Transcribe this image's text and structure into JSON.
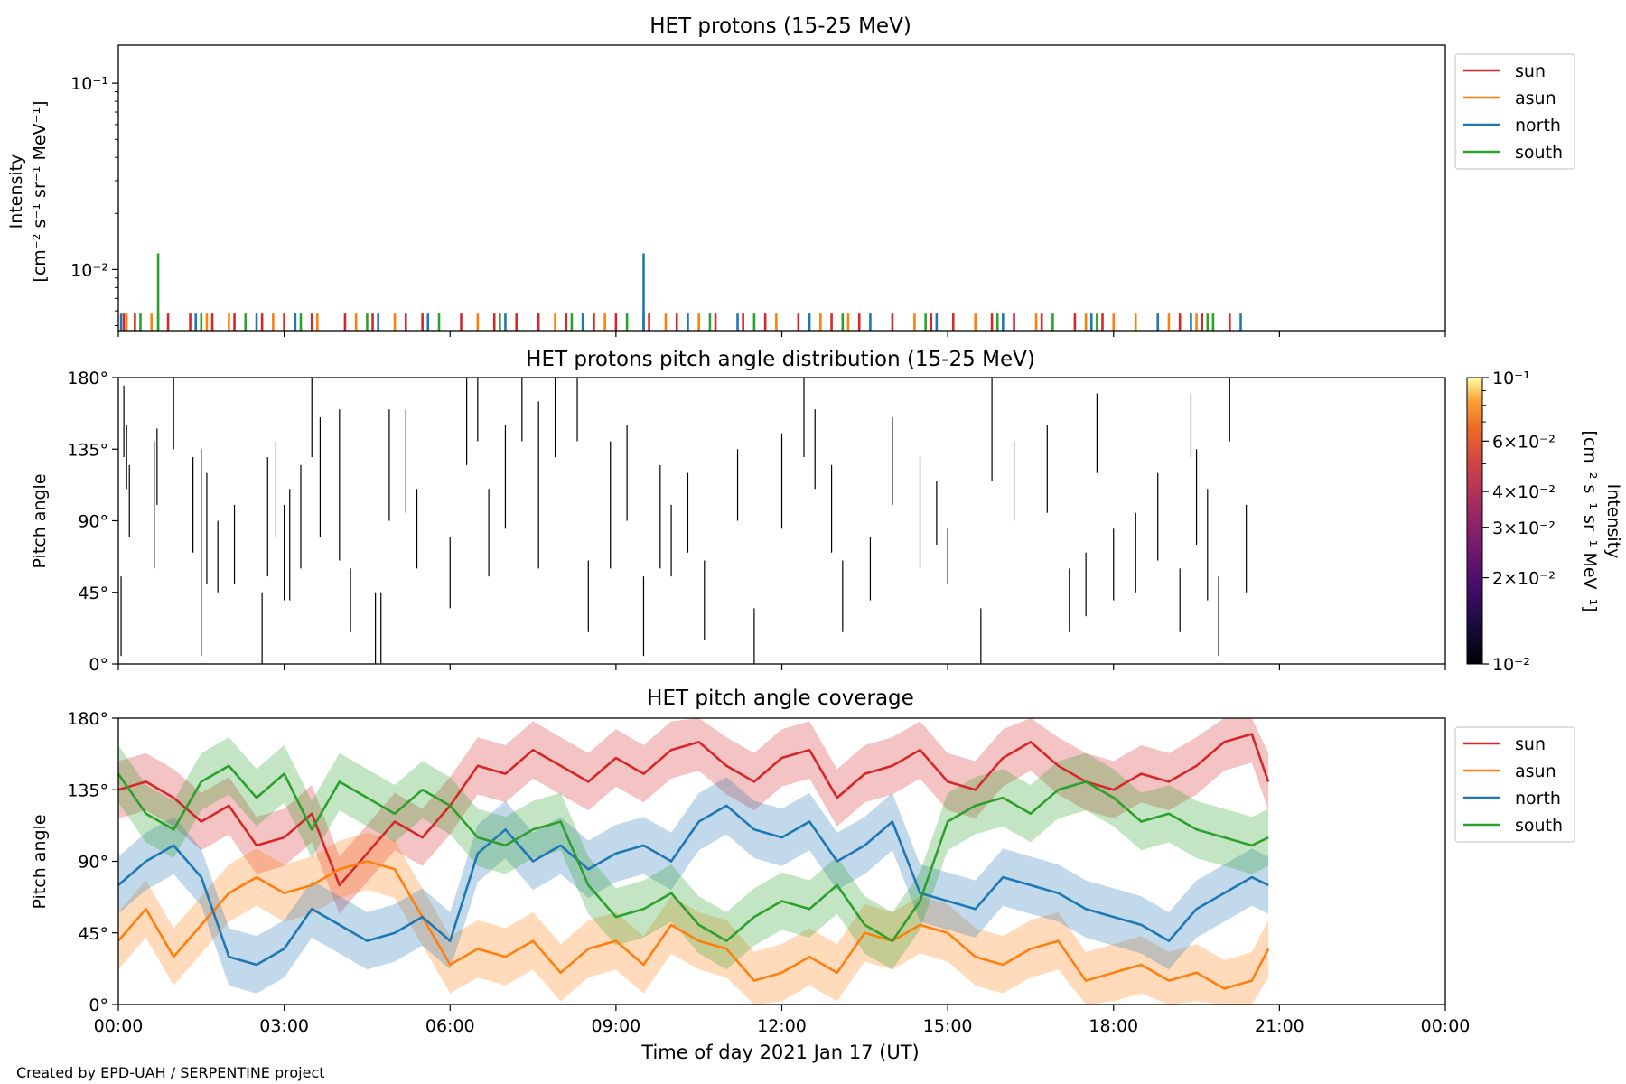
{
  "footer": {
    "credit": "Created by EPD-UAH / SERPENTINE project"
  },
  "colors": {
    "sun": "#d62728",
    "asun": "#ff7f0e",
    "north": "#1f77b4",
    "south": "#2ca02c"
  },
  "chart_data": [
    {
      "type": "bar",
      "title": "HET protons (15-25 MeV)",
      "ylabel": [
        "Intensity",
        "[cm⁻² s⁻¹ sr⁻¹ MeV⁻¹]"
      ],
      "yscale": "log",
      "ylim": [
        0.0047,
        0.16
      ],
      "yticks": [
        {
          "value": 0.1,
          "label": "10⁻¹"
        },
        {
          "value": 0.01,
          "label": "10⁻²"
        }
      ],
      "xlim_hours": [
        0,
        24
      ],
      "legend": {
        "placement": "outside-right",
        "entries": [
          "sun",
          "asun",
          "north",
          "south"
        ]
      },
      "baseline_value": 0.0058,
      "series": [
        {
          "name": "sun",
          "color": "#d62728",
          "peaks": [],
          "spikes_hours": [
            0.1,
            0.3,
            0.9,
            1.3,
            1.7,
            2.1,
            2.6,
            3.0,
            3.5,
            4.1,
            4.6,
            5.2,
            5.5,
            6.2,
            6.8,
            7.2,
            7.6,
            8.1,
            8.6,
            9.0,
            9.6,
            10.1,
            10.8,
            11.3,
            11.7,
            12.3,
            12.9,
            13.4,
            14.0,
            14.7,
            15.1,
            15.8,
            16.2,
            16.7,
            17.3,
            17.8,
            19.2,
            19.6,
            20.1
          ]
        },
        {
          "name": "asun",
          "color": "#ff7f0e",
          "peaks": [],
          "spikes_hours": [
            0.15,
            0.6,
            1.6,
            2.0,
            2.8,
            3.6,
            4.3,
            5.0,
            6.5,
            7.9,
            8.8,
            9.9,
            10.5,
            11.9,
            12.7,
            13.2,
            14.4,
            15.5,
            16.6,
            17.5,
            18.0,
            18.4,
            19.0,
            19.5
          ]
        },
        {
          "name": "north",
          "color": "#1f77b4",
          "peaks": [
            {
              "hour": 9.5,
              "value": 0.0122
            }
          ],
          "spikes_hours": [
            0.05,
            1.4,
            2.5,
            3.2,
            4.7,
            5.6,
            7.0,
            8.4,
            9.5,
            10.3,
            11.2,
            12.5,
            13.6,
            14.8,
            16.0,
            17.6,
            18.8,
            19.4,
            20.3
          ]
        },
        {
          "name": "south",
          "color": "#2ca02c",
          "peaks": [
            {
              "hour": 0.72,
              "value": 0.0122
            }
          ],
          "spikes_hours": [
            0.4,
            0.72,
            1.5,
            2.3,
            3.3,
            4.5,
            5.8,
            6.9,
            8.2,
            9.2,
            10.7,
            11.5,
            13.1,
            14.6,
            15.9,
            16.9,
            17.7,
            19.7,
            19.8
          ]
        }
      ]
    },
    {
      "type": "heatmap",
      "title": "HET protons pitch angle distribution (15-25 MeV)",
      "ylabel": "Pitch angle",
      "ylim": [
        0,
        180
      ],
      "yticks": [
        {
          "value": 0,
          "label": "0°"
        },
        {
          "value": 45,
          "label": "45°"
        },
        {
          "value": 90,
          "label": "90°"
        },
        {
          "value": 135,
          "label": "135°"
        },
        {
          "value": 180,
          "label": "180°"
        }
      ],
      "xlim_hours": [
        0,
        24
      ],
      "colorbar": {
        "label": [
          "Intensity",
          "[cm⁻² s⁻¹ sr⁻¹ MeV⁻¹]"
        ],
        "scale": "log",
        "range": [
          0.01,
          0.1
        ],
        "colormap": "inferno",
        "ticks": [
          {
            "value": 0.1,
            "label": "10⁻¹"
          },
          {
            "value": 0.06,
            "label": "6×10⁻²"
          },
          {
            "value": 0.04,
            "label": "4×10⁻²"
          },
          {
            "value": 0.03,
            "label": "3×10⁻²"
          },
          {
            "value": 0.02,
            "label": "2×10⁻²"
          },
          {
            "value": 0.01,
            "label": "10⁻²"
          }
        ]
      },
      "segments": [
        {
          "t": 0.05,
          "y0": 5,
          "y1": 55
        },
        {
          "t": 0.1,
          "y0": 130,
          "y1": 175
        },
        {
          "t": 0.15,
          "y0": 110,
          "y1": 150
        },
        {
          "t": 0.2,
          "y0": 80,
          "y1": 125
        },
        {
          "t": 0.65,
          "y0": 60,
          "y1": 140
        },
        {
          "t": 0.7,
          "y0": 100,
          "y1": 148
        },
        {
          "t": 1.0,
          "y0": 135,
          "y1": 180
        },
        {
          "t": 1.35,
          "y0": 70,
          "y1": 130
        },
        {
          "t": 1.5,
          "y0": 5,
          "y1": 135
        },
        {
          "t": 1.6,
          "y0": 50,
          "y1": 120
        },
        {
          "t": 1.8,
          "y0": 45,
          "y1": 90
        },
        {
          "t": 2.1,
          "y0": 50,
          "y1": 100
        },
        {
          "t": 2.6,
          "y0": 0,
          "y1": 45
        },
        {
          "t": 2.7,
          "y0": 55,
          "y1": 130
        },
        {
          "t": 2.85,
          "y0": 80,
          "y1": 140
        },
        {
          "t": 3.0,
          "y0": 40,
          "y1": 100
        },
        {
          "t": 3.1,
          "y0": 40,
          "y1": 110
        },
        {
          "t": 3.3,
          "y0": 60,
          "y1": 125
        },
        {
          "t": 3.5,
          "y0": 130,
          "y1": 180
        },
        {
          "t": 3.65,
          "y0": 80,
          "y1": 155
        },
        {
          "t": 4.0,
          "y0": 65,
          "y1": 160
        },
        {
          "t": 4.2,
          "y0": 20,
          "y1": 60
        },
        {
          "t": 4.65,
          "y0": 0,
          "y1": 45
        },
        {
          "t": 4.75,
          "y0": 0,
          "y1": 45
        },
        {
          "t": 4.9,
          "y0": 90,
          "y1": 160
        },
        {
          "t": 5.2,
          "y0": 95,
          "y1": 160
        },
        {
          "t": 5.4,
          "y0": 60,
          "y1": 110
        },
        {
          "t": 6.0,
          "y0": 35,
          "y1": 80
        },
        {
          "t": 6.3,
          "y0": 125,
          "y1": 180
        },
        {
          "t": 6.5,
          "y0": 140,
          "y1": 180
        },
        {
          "t": 6.7,
          "y0": 55,
          "y1": 110
        },
        {
          "t": 7.0,
          "y0": 85,
          "y1": 150
        },
        {
          "t": 7.3,
          "y0": 140,
          "y1": 180
        },
        {
          "t": 7.6,
          "y0": 60,
          "y1": 165
        },
        {
          "t": 7.9,
          "y0": 130,
          "y1": 180
        },
        {
          "t": 8.3,
          "y0": 140,
          "y1": 180
        },
        {
          "t": 8.5,
          "y0": 20,
          "y1": 65
        },
        {
          "t": 8.9,
          "y0": 60,
          "y1": 140
        },
        {
          "t": 9.2,
          "y0": 90,
          "y1": 150
        },
        {
          "t": 9.5,
          "y0": 5,
          "y1": 55
        },
        {
          "t": 9.8,
          "y0": 60,
          "y1": 125
        },
        {
          "t": 10.0,
          "y0": 55,
          "y1": 100
        },
        {
          "t": 10.3,
          "y0": 70,
          "y1": 120
        },
        {
          "t": 10.6,
          "y0": 15,
          "y1": 65
        },
        {
          "t": 11.2,
          "y0": 90,
          "y1": 135
        },
        {
          "t": 11.5,
          "y0": 0,
          "y1": 35
        },
        {
          "t": 12.0,
          "y0": 85,
          "y1": 145
        },
        {
          "t": 12.4,
          "y0": 130,
          "y1": 180
        },
        {
          "t": 12.6,
          "y0": 110,
          "y1": 160
        },
        {
          "t": 12.9,
          "y0": 70,
          "y1": 125
        },
        {
          "t": 13.1,
          "y0": 20,
          "y1": 65
        },
        {
          "t": 13.6,
          "y0": 40,
          "y1": 80
        },
        {
          "t": 14.0,
          "y0": 100,
          "y1": 155
        },
        {
          "t": 14.5,
          "y0": 60,
          "y1": 130
        },
        {
          "t": 14.8,
          "y0": 75,
          "y1": 115
        },
        {
          "t": 15.0,
          "y0": 50,
          "y1": 85
        },
        {
          "t": 15.6,
          "y0": 0,
          "y1": 35
        },
        {
          "t": 15.8,
          "y0": 115,
          "y1": 180
        },
        {
          "t": 16.2,
          "y0": 90,
          "y1": 140
        },
        {
          "t": 16.8,
          "y0": 95,
          "y1": 150
        },
        {
          "t": 17.2,
          "y0": 20,
          "y1": 60
        },
        {
          "t": 17.5,
          "y0": 30,
          "y1": 70
        },
        {
          "t": 17.7,
          "y0": 120,
          "y1": 170
        },
        {
          "t": 18.0,
          "y0": 40,
          "y1": 85
        },
        {
          "t": 18.4,
          "y0": 45,
          "y1": 95
        },
        {
          "t": 18.8,
          "y0": 65,
          "y1": 120
        },
        {
          "t": 19.2,
          "y0": 20,
          "y1": 60
        },
        {
          "t": 19.4,
          "y0": 130,
          "y1": 170
        },
        {
          "t": 19.5,
          "y0": 75,
          "y1": 135
        },
        {
          "t": 19.7,
          "y0": 40,
          "y1": 110
        },
        {
          "t": 19.9,
          "y0": 5,
          "y1": 55
        },
        {
          "t": 20.1,
          "y0": 140,
          "y1": 180
        },
        {
          "t": 20.4,
          "y0": 45,
          "y1": 100
        }
      ]
    },
    {
      "type": "line",
      "title": "HET pitch angle coverage",
      "ylabel": "Pitch angle",
      "xlabel": "Time of day 2021 Jan 17 (UT)",
      "ylim": [
        0,
        180
      ],
      "yticks": [
        {
          "value": 0,
          "label": "0°"
        },
        {
          "value": 45,
          "label": "45°"
        },
        {
          "value": 90,
          "label": "90°"
        },
        {
          "value": 135,
          "label": "135°"
        },
        {
          "value": 180,
          "label": "180°"
        }
      ],
      "xlim_hours": [
        0,
        24
      ],
      "xticks": [
        {
          "hour": 0,
          "label": "00:00"
        },
        {
          "hour": 3,
          "label": "03:00"
        },
        {
          "hour": 6,
          "label": "06:00"
        },
        {
          "hour": 9,
          "label": "09:00"
        },
        {
          "hour": 12,
          "label": "12:00"
        },
        {
          "hour": 15,
          "label": "15:00"
        },
        {
          "hour": 18,
          "label": "18:00"
        },
        {
          "hour": 21,
          "label": "21:00"
        },
        {
          "hour": 24,
          "label": "00:00"
        }
      ],
      "legend": {
        "placement": "outside-right",
        "entries": [
          "sun",
          "asun",
          "north",
          "south"
        ]
      },
      "band_halfwidth_deg": 18,
      "data_end_hour": 20.8,
      "series": [
        {
          "name": "sun",
          "color": "#d62728",
          "x": [
            0,
            0.5,
            1,
            1.5,
            2,
            2.5,
            3,
            3.5,
            4,
            4.5,
            5,
            5.5,
            6,
            6.5,
            7,
            7.5,
            8,
            8.5,
            9,
            9.5,
            10,
            10.5,
            11,
            11.5,
            12,
            12.5,
            13,
            13.5,
            14,
            14.5,
            15,
            15.5,
            16,
            16.5,
            17,
            17.5,
            18,
            18.5,
            19,
            19.5,
            20,
            20.5,
            20.8
          ],
          "y": [
            135,
            140,
            130,
            115,
            125,
            100,
            105,
            120,
            75,
            95,
            115,
            105,
            125,
            150,
            145,
            160,
            150,
            140,
            155,
            145,
            160,
            165,
            150,
            140,
            155,
            160,
            130,
            145,
            150,
            160,
            140,
            135,
            155,
            165,
            150,
            140,
            135,
            145,
            140,
            150,
            165,
            170,
            140
          ]
        },
        {
          "name": "asun",
          "color": "#ff7f0e",
          "x": [
            0,
            0.5,
            1,
            1.5,
            2,
            2.5,
            3,
            3.5,
            4,
            4.5,
            5,
            5.5,
            6,
            6.5,
            7,
            7.5,
            8,
            8.5,
            9,
            9.5,
            10,
            10.5,
            11,
            11.5,
            12,
            12.5,
            13,
            13.5,
            14,
            14.5,
            15,
            15.5,
            16,
            16.5,
            17,
            17.5,
            18,
            18.5,
            19,
            19.5,
            20,
            20.5,
            20.8
          ],
          "y": [
            40,
            60,
            30,
            50,
            70,
            80,
            70,
            75,
            85,
            90,
            85,
            55,
            25,
            35,
            30,
            40,
            20,
            35,
            40,
            25,
            50,
            40,
            35,
            15,
            20,
            30,
            20,
            45,
            40,
            50,
            45,
            30,
            25,
            35,
            40,
            15,
            20,
            25,
            15,
            20,
            10,
            15,
            35
          ]
        },
        {
          "name": "north",
          "color": "#1f77b4",
          "x": [
            0,
            0.5,
            1,
            1.5,
            2,
            2.5,
            3,
            3.5,
            4,
            4.5,
            5,
            5.5,
            6,
            6.5,
            7,
            7.5,
            8,
            8.5,
            9,
            9.5,
            10,
            10.5,
            11,
            11.5,
            12,
            12.5,
            13,
            13.5,
            14,
            14.5,
            15,
            15.5,
            16,
            16.5,
            17,
            17.5,
            18,
            18.5,
            19,
            19.5,
            20,
            20.5,
            20.8
          ],
          "y": [
            75,
            90,
            100,
            80,
            30,
            25,
            35,
            60,
            50,
            40,
            45,
            55,
            40,
            95,
            110,
            90,
            100,
            85,
            95,
            100,
            90,
            115,
            125,
            110,
            105,
            115,
            90,
            100,
            115,
            70,
            65,
            60,
            80,
            75,
            70,
            60,
            55,
            50,
            40,
            60,
            70,
            80,
            75
          ]
        },
        {
          "name": "south",
          "color": "#2ca02c",
          "x": [
            0,
            0.5,
            1,
            1.5,
            2,
            2.5,
            3,
            3.5,
            4,
            4.5,
            5,
            5.5,
            6,
            6.5,
            7,
            7.5,
            8,
            8.5,
            9,
            9.5,
            10,
            10.5,
            11,
            11.5,
            12,
            12.5,
            13,
            13.5,
            14,
            14.5,
            15,
            15.5,
            16,
            16.5,
            17,
            17.5,
            18,
            18.5,
            19,
            19.5,
            20,
            20.5,
            20.8
          ],
          "y": [
            145,
            120,
            110,
            140,
            150,
            130,
            145,
            110,
            140,
            130,
            120,
            135,
            125,
            105,
            100,
            110,
            115,
            75,
            55,
            60,
            70,
            50,
            40,
            55,
            65,
            60,
            75,
            50,
            40,
            65,
            115,
            125,
            130,
            120,
            135,
            140,
            130,
            115,
            120,
            110,
            105,
            100,
            105
          ]
        }
      ]
    }
  ]
}
